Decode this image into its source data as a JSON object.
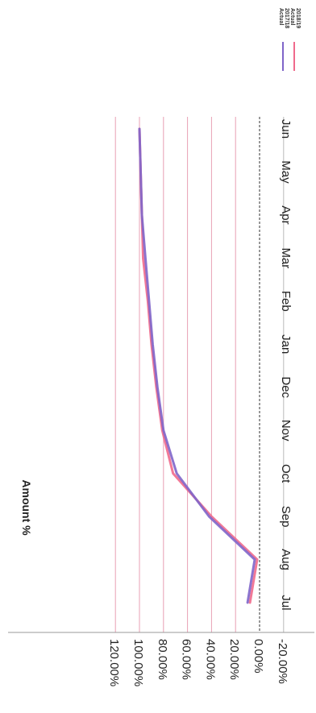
{
  "chart_data": {
    "type": "line",
    "orientation": "rotated-90-clockwise",
    "categories": [
      "Jul",
      "Aug",
      "Sep",
      "Oct",
      "Nov",
      "Dec",
      "Jan",
      "Feb",
      "Mar",
      "Apr",
      "May",
      "Jun"
    ],
    "ylabel": "Amount %",
    "xlabel": "",
    "ylim": [
      -20,
      120
    ],
    "yticks": [
      "120.00%",
      "100.00%",
      "80.00%",
      "60.00%",
      "40.00%",
      "20.00%",
      "0.00%",
      "-20.00%"
    ],
    "grid": true,
    "legend_position": "top-right",
    "series": [
      {
        "name": "2018/19 Actual",
        "name_lines": [
          "2018/19",
          "Actual"
        ],
        "color": "#f06a8c",
        "values": [
          8,
          2,
          40,
          72,
          81,
          86,
          90,
          93,
          97,
          98,
          99,
          100
        ]
      },
      {
        "name": "2017/18 Actual",
        "name_lines": [
          "2017/18",
          "Actual"
        ],
        "color": "#7f65c9",
        "values": [
          10,
          4,
          42,
          69,
          80,
          85,
          89,
          92,
          95,
          98,
          99,
          100
        ]
      }
    ]
  }
}
